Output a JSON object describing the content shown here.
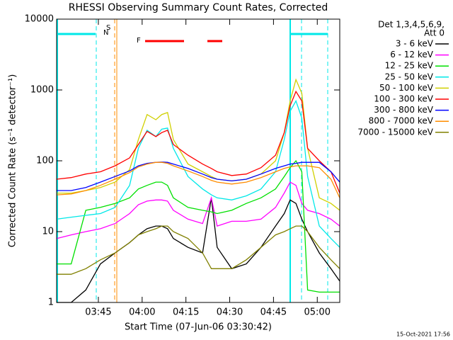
{
  "chart_data": {
    "type": "line",
    "title": "RHESSI Observing Summary Count Rates, Corrected",
    "xlabel": "Start Time (07-Jun-06 03:30:42)",
    "ylabel": "Corrected Count Rate (s⁻¹ detector⁻¹)",
    "footer": "15-Oct-2021 17:56",
    "legend_header": [
      "Det 1,3,4,5,6,9,",
      "Att 0"
    ],
    "legend": "right",
    "yscale": "log",
    "annotations": [
      {
        "text": "N",
        "color": "#00e0e0"
      },
      {
        "text": "S",
        "color": "#ff8c00"
      },
      {
        "text": "F",
        "color": "#ff0000"
      }
    ],
    "xlim": [
      0,
      97
    ],
    "xticks": [
      {
        "value": 14.3,
        "label": "03:45"
      },
      {
        "value": 29.3,
        "label": "04:00"
      },
      {
        "value": 44.3,
        "label": "04:15"
      },
      {
        "value": 59.3,
        "label": "04:30"
      },
      {
        "value": 74.3,
        "label": "04:45"
      },
      {
        "value": 89.3,
        "label": "05:00"
      }
    ],
    "ylim": [
      1,
      10000
    ],
    "yticks": [
      1,
      10,
      100,
      1000,
      10000
    ],
    "x": [
      0,
      5,
      10,
      15,
      20,
      25,
      28,
      31,
      34,
      36,
      38,
      40,
      45,
      50,
      53,
      55,
      60,
      65,
      70,
      75,
      78,
      80,
      82,
      84,
      86,
      90,
      94,
      97
    ],
    "series": [
      {
        "name": "3 - 6 keV",
        "color": "#000000",
        "values": [
          1,
          1,
          1.5,
          3.5,
          5,
          7,
          9,
          11,
          12,
          12,
          11,
          8,
          6,
          5,
          30,
          6,
          3,
          3.5,
          6,
          12,
          18,
          28,
          25,
          15,
          10,
          5,
          3,
          2
        ]
      },
      {
        "name": "6 - 12 keV",
        "color": "#ff00ff",
        "values": [
          8,
          9,
          10,
          11,
          13,
          18,
          24,
          27,
          28,
          28,
          27,
          20,
          15,
          13,
          30,
          12,
          14,
          14,
          15,
          22,
          35,
          50,
          45,
          25,
          20,
          18,
          15,
          12
        ]
      },
      {
        "name": "12 - 25 keV",
        "color": "#00e000",
        "values": [
          3.5,
          3.5,
          20,
          22,
          25,
          30,
          40,
          45,
          50,
          50,
          45,
          30,
          22,
          20,
          19,
          18,
          20,
          25,
          30,
          40,
          60,
          80,
          100,
          70,
          1.5,
          1.4,
          1.4,
          1.4
        ]
      },
      {
        "name": "25 - 50 keV",
        "color": "#00e8e8",
        "values": [
          15,
          16,
          17,
          18,
          22,
          45,
          150,
          270,
          220,
          280,
          290,
          150,
          60,
          40,
          33,
          30,
          28,
          32,
          40,
          70,
          200,
          500,
          700,
          400,
          60,
          12,
          8,
          6
        ]
      },
      {
        "name": "50 - 100 keV",
        "color": "#d0d000",
        "values": [
          35,
          35,
          38,
          42,
          50,
          75,
          200,
          450,
          380,
          450,
          480,
          200,
          90,
          70,
          60,
          55,
          52,
          55,
          65,
          100,
          250,
          700,
          1400,
          900,
          150,
          30,
          25,
          20
        ]
      },
      {
        "name": "100 - 300 keV",
        "color": "#ff0000",
        "values": [
          55,
          58,
          65,
          70,
          85,
          110,
          170,
          260,
          220,
          250,
          270,
          170,
          120,
          90,
          78,
          70,
          62,
          65,
          80,
          120,
          250,
          600,
          950,
          700,
          150,
          100,
          70,
          35
        ]
      },
      {
        "name": "300 - 800 keV",
        "color": "#0000ff",
        "values": [
          38,
          38,
          42,
          50,
          60,
          72,
          85,
          92,
          95,
          96,
          95,
          90,
          78,
          65,
          58,
          55,
          52,
          55,
          65,
          78,
          85,
          90,
          92,
          95,
          95,
          95,
          70,
          50
        ]
      },
      {
        "name": "800 - 7000 keV",
        "color": "#ff8c00",
        "values": [
          33,
          34,
          38,
          45,
          55,
          68,
          82,
          90,
          95,
          95,
          92,
          85,
          72,
          60,
          53,
          50,
          47,
          50,
          58,
          70,
          78,
          82,
          85,
          85,
          85,
          80,
          55,
          30
        ]
      },
      {
        "name": "7000 - 15000 keV",
        "color": "#808000",
        "values": [
          2.5,
          2.5,
          3,
          4,
          5,
          7,
          9,
          10,
          11,
          12,
          12,
          10,
          8,
          5,
          3,
          3,
          3,
          4,
          6,
          9,
          10,
          11,
          12,
          12,
          10,
          6,
          4,
          3
        ]
      }
    ]
  }
}
